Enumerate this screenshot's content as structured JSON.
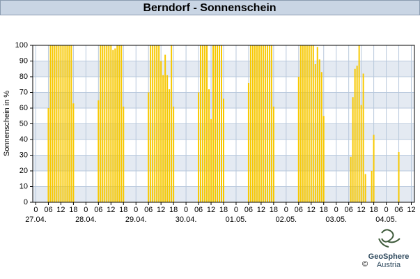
{
  "chart_data": {
    "type": "bar",
    "title": "Berndorf - Sonnenschein",
    "y_label": "Sonnenschein in %",
    "color": "#f7c800",
    "grid": true,
    "x": [
      6,
      7,
      8,
      9,
      10,
      11,
      12,
      13,
      14,
      15,
      16,
      17,
      18,
      30,
      31,
      32,
      33,
      34,
      35,
      36,
      37,
      38,
      39,
      40,
      41,
      42,
      54,
      55,
      56,
      57,
      58,
      59,
      60,
      61,
      62,
      63,
      64,
      65,
      66,
      78,
      79,
      80,
      81,
      82,
      83,
      84,
      85,
      86,
      87,
      88,
      89,
      90,
      102,
      103,
      104,
      105,
      106,
      107,
      108,
      109,
      110,
      111,
      112,
      113,
      114,
      126,
      127,
      128,
      129,
      130,
      131,
      132,
      133,
      134,
      135,
      136,
      137,
      138,
      151,
      152,
      153,
      154,
      155,
      156,
      157,
      158,
      161,
      162,
      174
    ],
    "values": [
      60,
      100,
      100,
      100,
      100,
      100,
      100,
      100,
      100,
      100,
      100,
      100,
      63,
      65,
      100,
      100,
      100,
      100,
      100,
      100,
      97,
      98,
      100,
      100,
      100,
      61,
      70,
      100,
      100,
      100,
      100,
      100,
      90,
      81,
      94,
      81,
      72,
      100,
      61,
      70,
      100,
      100,
      100,
      100,
      72,
      53,
      100,
      100,
      100,
      100,
      100,
      66,
      76,
      100,
      100,
      100,
      100,
      100,
      100,
      100,
      100,
      100,
      100,
      100,
      61,
      80,
      100,
      100,
      100,
      100,
      100,
      100,
      100,
      88,
      99,
      91,
      83,
      55,
      29,
      67,
      85,
      87,
      100,
      62,
      82,
      18,
      20,
      43,
      32
    ],
    "xlim": [
      -1.5,
      181.5
    ],
    "xticks": [
      0,
      {
        "value": 6,
        "label": "06"
      },
      {
        "value": 12,
        "label": "12"
      },
      {
        "value": 18,
        "label": "18"
      },
      {
        "value": 24,
        "label": "0"
      },
      {
        "value": 30,
        "label": "06"
      },
      {
        "value": 36,
        "label": "12"
      },
      {
        "value": 42,
        "label": "18"
      },
      {
        "value": 48,
        "label": "0"
      },
      {
        "value": 54,
        "label": "06"
      },
      {
        "value": 60,
        "label": "12"
      },
      {
        "value": 66,
        "label": "18"
      },
      {
        "value": 72,
        "label": "0"
      },
      {
        "value": 78,
        "label": "06"
      },
      {
        "value": 84,
        "label": "12"
      },
      {
        "value": 90,
        "label": "18"
      },
      {
        "value": 96,
        "label": "0"
      },
      {
        "value": 102,
        "label": "06"
      },
      {
        "value": 108,
        "label": "12"
      },
      {
        "value": 114,
        "label": "18"
      },
      {
        "value": 120,
        "label": "0"
      },
      {
        "value": 126,
        "label": "06"
      },
      {
        "value": 132,
        "label": "12"
      },
      {
        "value": 138,
        "label": "18"
      },
      {
        "value": 144,
        "label": "0"
      },
      {
        "value": 150,
        "label": "06"
      },
      {
        "value": 156,
        "label": "12"
      },
      {
        "value": 162,
        "label": "18"
      },
      {
        "value": 168,
        "label": "0"
      },
      {
        "value": 174,
        "label": "06"
      },
      {
        "value": 180,
        "label": "12"
      }
    ],
    "date_ticks": [
      {
        "value": 0,
        "label": "27.04."
      },
      {
        "value": 24,
        "label": "28.04."
      },
      {
        "value": 48,
        "label": "29.04."
      },
      {
        "value": 72,
        "label": "30.04."
      },
      {
        "value": 96,
        "label": "01.05."
      },
      {
        "value": 120,
        "label": "02.05."
      },
      {
        "value": 144,
        "label": "03.05."
      },
      {
        "value": 168,
        "label": "04.05."
      }
    ],
    "ylim": [
      0,
      100
    ],
    "yticks": [
      0,
      10,
      20,
      30,
      40,
      50,
      60,
      70,
      80,
      90,
      100
    ]
  },
  "logo": {
    "copyright": "©",
    "name": "GeoSphere",
    "country": "Austria"
  }
}
